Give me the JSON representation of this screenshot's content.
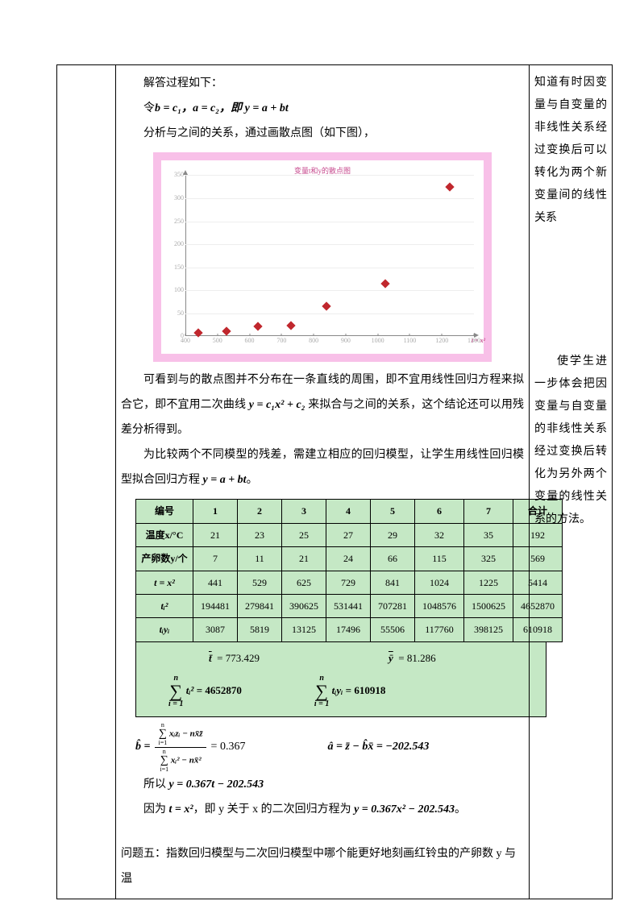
{
  "left_column": "",
  "right_column": {
    "para1": "知道有时因变量与自变量的非线性关系经过变换后可以转化为两个新变量间的线性关系",
    "para2": "使学生进一步体会把因变量与自变量的非线性关系经过变换后转化为另外两个变量的线性关系的方法。"
  },
  "main": {
    "p1": "解答过程如下：",
    "eq1_prefix": "令",
    "eq1": "b = c₁，a = c₂，即 y = a + bt",
    "p2": "分析与之间的关系，通过画散点图（如下图），",
    "chart_title": "变量t和y的散点图",
    "p3a": "可看到与的散点图并不分布在一条直线的周围，即不宜用线性回归方程来拟合它，即不宜用二次曲线 ",
    "eq2": "y = c₁x² + c₂",
    "p3b": " 来拟合与之间的关系，这个结论还可以用残差分析得到。",
    "p4": "为比较两个不同模型的残差，需建立相应的回归模型，让学生用线性回归模型拟合回归方程 ",
    "eq3": "y = a + bt",
    "p4b": "。",
    "bhat_eq_left": "b̂ = ",
    "bhat_val": " = 0.367",
    "ahat_eq": "â = z̄ − b̂x̄ = −202.543",
    "p5a": "所以 ",
    "eq4": "y = 0.367t − 202.543",
    "p6a": "因为 ",
    "eq5": "t = x²",
    "p6b": "，即 y 关于 x 的二次回归方程为 ",
    "eq6": "y = 0.367x² − 202.543",
    "p6c": "。",
    "p7": "问题五：指数回归模型与二次回归模型中哪个能更好地刻画红铃虫的产卵数 y 与温"
  },
  "chart": {
    "background_color": "#f8c0e8",
    "plot_bg": "#ffffff",
    "marker_color": "#c0272d",
    "x_ticks": [
      400,
      500,
      600,
      700,
      800,
      900,
      1000,
      1100,
      1200,
      1300
    ],
    "y_ticks": [
      0,
      50,
      100,
      150,
      200,
      250,
      300,
      350
    ],
    "ymax": 350,
    "xmin": 400,
    "xmax": 1300,
    "x_axis_end_label": "t = x²",
    "points": [
      {
        "x": 441,
        "y": 7
      },
      {
        "x": 529,
        "y": 11
      },
      {
        "x": 625,
        "y": 21
      },
      {
        "x": 729,
        "y": 24
      },
      {
        "x": 841,
        "y": 66
      },
      {
        "x": 1024,
        "y": 115
      },
      {
        "x": 1225,
        "y": 325
      }
    ]
  },
  "table": {
    "headers": [
      "编号",
      "1",
      "2",
      "3",
      "4",
      "5",
      "6",
      "7",
      "合计"
    ],
    "rows": [
      {
        "label": "温度x/°C",
        "cells": [
          "21",
          "23",
          "25",
          "27",
          "29",
          "32",
          "35",
          "192"
        ]
      },
      {
        "label": "产卵数y/个",
        "cells": [
          "7",
          "11",
          "21",
          "24",
          "66",
          "115",
          "325",
          "569"
        ]
      },
      {
        "label_html": "t = x²",
        "cells": [
          "441",
          "529",
          "625",
          "729",
          "841",
          "1024",
          "1225",
          "5414"
        ]
      },
      {
        "label_html": "tᵢ²",
        "cells": [
          "194481",
          "279841",
          "390625",
          "531441",
          "707281",
          "1048576",
          "1500625",
          "4652870"
        ]
      },
      {
        "label_html": "tᵢyᵢ",
        "cells": [
          "3087",
          "5819",
          "13125",
          "17496",
          "55506",
          "117760",
          "398125",
          "610918"
        ]
      }
    ]
  },
  "summary": {
    "tbar_label": "t̄",
    "tbar_val": "= 773.429",
    "ybar_label": "ȳ",
    "ybar_val": "= 81.286",
    "sum1_upper": "n",
    "sum1_lower": "i = 1",
    "sum1_body": "tᵢ²",
    "sum1_val": "= 4652870",
    "sum2_body": "tᵢyᵢ",
    "sum2_val": "= 610918"
  },
  "frac": {
    "num_upper": "n",
    "num_lower": "i=1",
    "num_body": "xᵢzᵢ − nx̄z̄",
    "den_body": "xᵢ² − nx̄²"
  },
  "colors": {
    "table_bg": "#c5e8c5",
    "border": "#000000"
  }
}
